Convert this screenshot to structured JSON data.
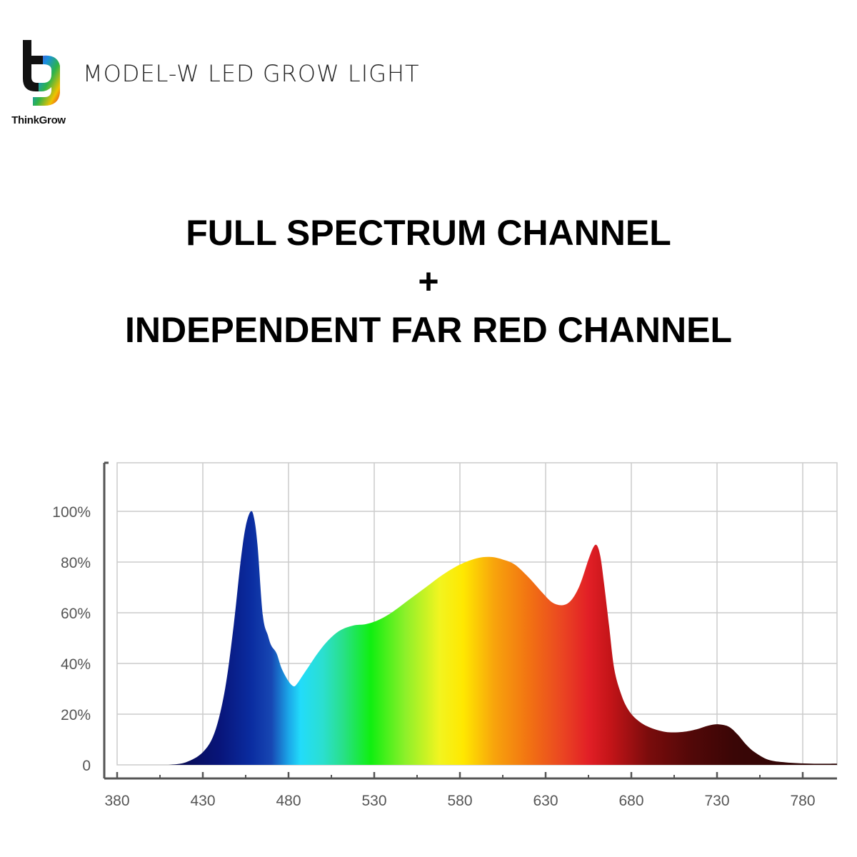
{
  "header": {
    "brand": "ThinkGrow",
    "model_title": "MODEL-W LED GROW LIGHT"
  },
  "headline": {
    "line1": "FULL SPECTRUM CHANNEL",
    "line2": "+",
    "line3": "INDEPENDENT FAR RED CHANNEL"
  },
  "logo": {
    "colors": [
      "#f0c200",
      "#e8262a",
      "#7a2cc4",
      "#1a8fe0",
      "#2db34a"
    ]
  },
  "chart_data": {
    "type": "area",
    "title": "",
    "xlabel": "",
    "ylabel": "",
    "xlim": [
      380,
      800
    ],
    "ylim": [
      0,
      115
    ],
    "grid": true,
    "legend": "none",
    "x_ticks": [
      380,
      430,
      480,
      530,
      580,
      630,
      680,
      730,
      780
    ],
    "y_ticks": [
      0,
      20,
      40,
      60,
      80,
      100
    ],
    "y_tick_labels": [
      "0",
      "20%",
      "40%",
      "60%",
      "80%",
      "100%"
    ],
    "series": [
      {
        "x": [
          410,
          420,
          430,
          437,
          443,
          448,
          452,
          455,
          458,
          460,
          462,
          465,
          468,
          470,
          473,
          476,
          480,
          483,
          485,
          488,
          492,
          497,
          503,
          510,
          518,
          525,
          532,
          540,
          550,
          560,
          570,
          580,
          590,
          598,
          605,
          612,
          620,
          628,
          634,
          640,
          645,
          650,
          655,
          658,
          660,
          662,
          664,
          667,
          670,
          674,
          678,
          683,
          690,
          700,
          710,
          718,
          725,
          731,
          737,
          742,
          747,
          752,
          760,
          770,
          785,
          800
        ],
        "y": [
          0,
          1,
          5,
          13,
          30,
          55,
          80,
          94,
          100,
          97,
          86,
          59,
          51,
          47,
          44,
          38,
          33,
          31,
          32,
          35,
          39,
          44,
          49,
          53,
          55,
          55.5,
          57,
          60,
          65,
          70,
          75,
          79,
          81.5,
          82,
          81,
          79,
          74,
          68,
          64,
          63,
          65,
          71,
          81,
          86,
          86.5,
          82,
          72,
          55,
          38,
          28,
          22,
          18,
          15,
          13,
          13,
          14,
          15.5,
          16,
          15,
          12,
          8,
          5,
          2,
          1,
          0.5,
          0.5
        ]
      }
    ],
    "gradient_stops": [
      {
        "nm": 410,
        "color": "#0a0a4a"
      },
      {
        "nm": 440,
        "color": "#08157a"
      },
      {
        "nm": 458,
        "color": "#0a2ca0"
      },
      {
        "nm": 470,
        "color": "#1747b3"
      },
      {
        "nm": 480,
        "color": "#1ba6e8"
      },
      {
        "nm": 487,
        "color": "#22dcfa"
      },
      {
        "nm": 500,
        "color": "#2bdfd0"
      },
      {
        "nm": 512,
        "color": "#28e088"
      },
      {
        "nm": 528,
        "color": "#10ef10"
      },
      {
        "nm": 548,
        "color": "#8cf02a"
      },
      {
        "nm": 568,
        "color": "#f2f420"
      },
      {
        "nm": 582,
        "color": "#ffe800"
      },
      {
        "nm": 600,
        "color": "#f8a40c"
      },
      {
        "nm": 620,
        "color": "#f27312"
      },
      {
        "nm": 640,
        "color": "#ea4522"
      },
      {
        "nm": 655,
        "color": "#e21f26"
      },
      {
        "nm": 668,
        "color": "#c31418"
      },
      {
        "nm": 690,
        "color": "#7a0c0c"
      },
      {
        "nm": 715,
        "color": "#520808"
      },
      {
        "nm": 740,
        "color": "#3a0606"
      },
      {
        "nm": 800,
        "color": "#2a0404"
      }
    ],
    "colors": {
      "grid": "#cccccc",
      "axis": "#555555",
      "tick_label": "#555555"
    }
  }
}
